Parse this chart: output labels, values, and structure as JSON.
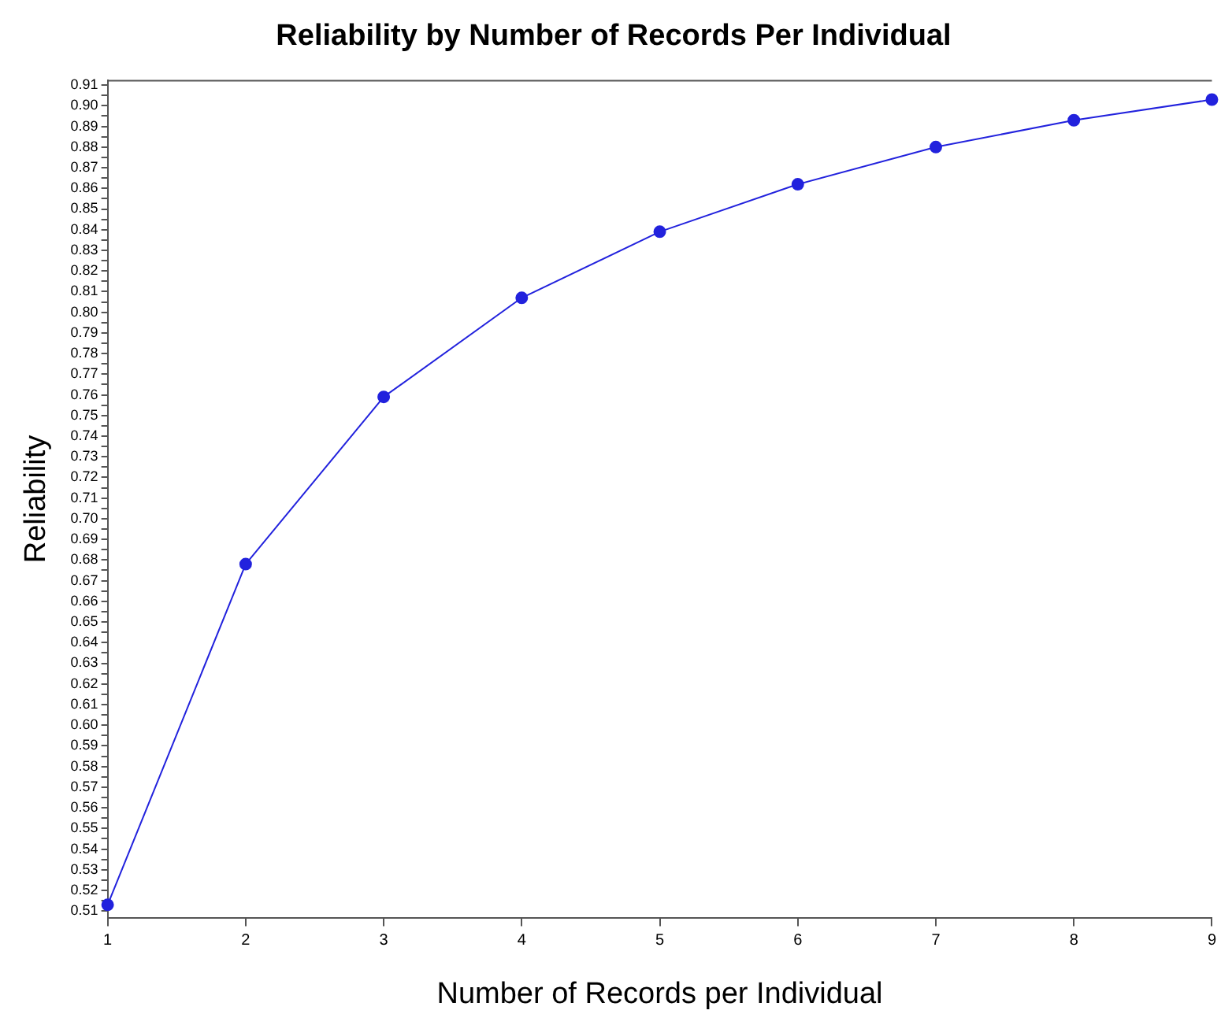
{
  "chart_data": {
    "type": "line",
    "title": "Reliability by Number of Records Per Individual",
    "xlabel": "Number of Records per Individual",
    "ylabel": "Reliability",
    "x": [
      1,
      2,
      3,
      4,
      5,
      6,
      7,
      8,
      9
    ],
    "series": [
      {
        "color": "#2222dd",
        "values": [
          0.513,
          0.678,
          0.759,
          0.807,
          0.839,
          0.862,
          0.88,
          0.893,
          0.903
        ]
      }
    ],
    "xlim": [
      1,
      9
    ],
    "xticks": [
      1,
      2,
      3,
      4,
      5,
      6,
      7,
      8,
      9
    ],
    "ylim": [
      0.5065,
      0.9125
    ],
    "yticks": [
      {
        "value": 0.51,
        "label": "0.51"
      },
      {
        "value": 0.515,
        "label": null
      },
      {
        "value": 0.52,
        "label": "0.52"
      },
      {
        "value": 0.525,
        "label": null
      },
      {
        "value": 0.53,
        "label": "0.53"
      },
      {
        "value": 0.535,
        "label": null
      },
      {
        "value": 0.54,
        "label": "0.54"
      },
      {
        "value": 0.545,
        "label": null
      },
      {
        "value": 0.55,
        "label": "0.55"
      },
      {
        "value": 0.555,
        "label": null
      },
      {
        "value": 0.56,
        "label": "0.56"
      },
      {
        "value": 0.565,
        "label": null
      },
      {
        "value": 0.57,
        "label": "0.57"
      },
      {
        "value": 0.575,
        "label": null
      },
      {
        "value": 0.58,
        "label": "0.58"
      },
      {
        "value": 0.585,
        "label": null
      },
      {
        "value": 0.59,
        "label": "0.59"
      },
      {
        "value": 0.595,
        "label": null
      },
      {
        "value": 0.6,
        "label": "0.60"
      },
      {
        "value": 0.605,
        "label": null
      },
      {
        "value": 0.61,
        "label": "0.61"
      },
      {
        "value": 0.615,
        "label": null
      },
      {
        "value": 0.62,
        "label": "0.62"
      },
      {
        "value": 0.625,
        "label": null
      },
      {
        "value": 0.63,
        "label": "0.63"
      },
      {
        "value": 0.635,
        "label": null
      },
      {
        "value": 0.64,
        "label": "0.64"
      },
      {
        "value": 0.645,
        "label": null
      },
      {
        "value": 0.65,
        "label": "0.65"
      },
      {
        "value": 0.655,
        "label": null
      },
      {
        "value": 0.66,
        "label": "0.66"
      },
      {
        "value": 0.665,
        "label": null
      },
      {
        "value": 0.67,
        "label": "0.67"
      },
      {
        "value": 0.675,
        "label": null
      },
      {
        "value": 0.68,
        "label": "0.68"
      },
      {
        "value": 0.685,
        "label": null
      },
      {
        "value": 0.69,
        "label": "0.69"
      },
      {
        "value": 0.695,
        "label": null
      },
      {
        "value": 0.7,
        "label": "0.70"
      },
      {
        "value": 0.705,
        "label": null
      },
      {
        "value": 0.71,
        "label": "0.71"
      },
      {
        "value": 0.715,
        "label": null
      },
      {
        "value": 0.72,
        "label": "0.72"
      },
      {
        "value": 0.725,
        "label": null
      },
      {
        "value": 0.73,
        "label": "0.73"
      },
      {
        "value": 0.735,
        "label": null
      },
      {
        "value": 0.74,
        "label": "0.74"
      },
      {
        "value": 0.745,
        "label": null
      },
      {
        "value": 0.75,
        "label": "0.75"
      },
      {
        "value": 0.755,
        "label": null
      },
      {
        "value": 0.76,
        "label": "0.76"
      },
      {
        "value": 0.765,
        "label": null
      },
      {
        "value": 0.77,
        "label": "0.77"
      },
      {
        "value": 0.775,
        "label": null
      },
      {
        "value": 0.78,
        "label": "0.78"
      },
      {
        "value": 0.785,
        "label": null
      },
      {
        "value": 0.79,
        "label": "0.79"
      },
      {
        "value": 0.795,
        "label": null
      },
      {
        "value": 0.8,
        "label": "0.80"
      },
      {
        "value": 0.805,
        "label": null
      },
      {
        "value": 0.81,
        "label": "0.81"
      },
      {
        "value": 0.815,
        "label": null
      },
      {
        "value": 0.82,
        "label": "0.82"
      },
      {
        "value": 0.825,
        "label": null
      },
      {
        "value": 0.83,
        "label": "0.83"
      },
      {
        "value": 0.835,
        "label": null
      },
      {
        "value": 0.84,
        "label": "0.84"
      },
      {
        "value": 0.845,
        "label": null
      },
      {
        "value": 0.85,
        "label": "0.85"
      },
      {
        "value": 0.855,
        "label": null
      },
      {
        "value": 0.86,
        "label": "0.86"
      },
      {
        "value": 0.865,
        "label": null
      },
      {
        "value": 0.87,
        "label": "0.87"
      },
      {
        "value": 0.875,
        "label": null
      },
      {
        "value": 0.88,
        "label": "0.88"
      },
      {
        "value": 0.885,
        "label": null
      },
      {
        "value": 0.89,
        "label": "0.89"
      },
      {
        "value": 0.895,
        "label": null
      },
      {
        "value": 0.9,
        "label": "0.90"
      },
      {
        "value": 0.905,
        "label": null
      },
      {
        "value": 0.91,
        "label": "0.91"
      }
    ],
    "grid": false,
    "legend": false,
    "marker": "circle",
    "line_style": "solid"
  }
}
